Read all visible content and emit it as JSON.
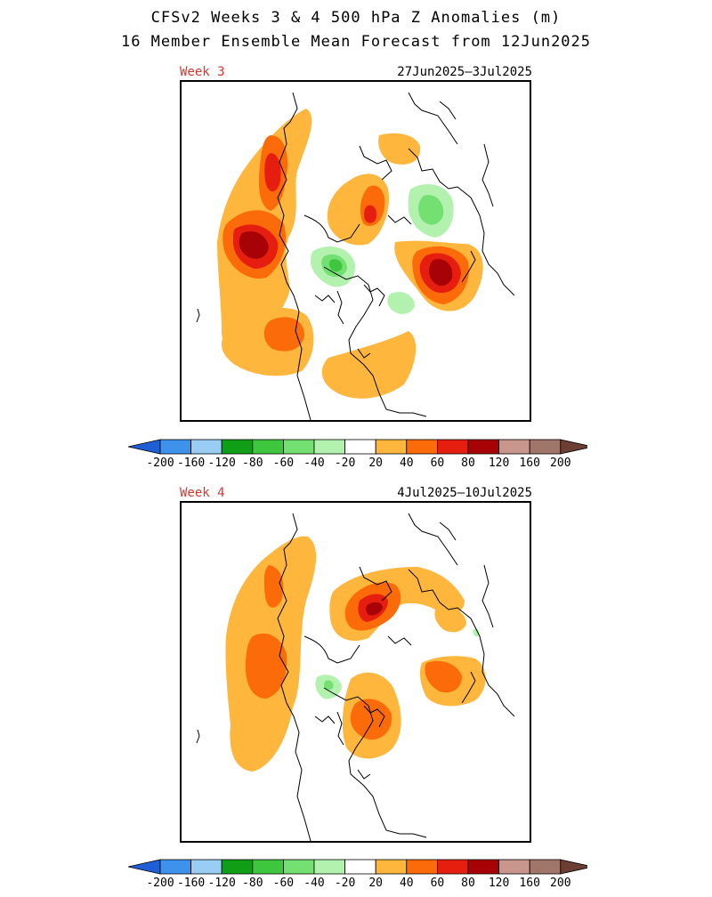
{
  "title_line1": "CFSv2 Weeks 3 & 4 500 hPa Z Anomalies (m)",
  "title_line2": "16 Member Ensemble Mean Forecast from 12Jun2025",
  "panels": [
    {
      "week_label": "Week 3",
      "date_range": "27Jun2025–3Jul2025"
    },
    {
      "week_label": "Week 4",
      "date_range": "4Jul2025–10Jul2025"
    }
  ],
  "colorbar": {
    "levels": [
      "-200",
      "-160",
      "-120",
      "-80",
      "-60",
      "-40",
      "-20",
      "20",
      "40",
      "60",
      "80",
      "120",
      "160",
      "200"
    ],
    "colors": [
      "#1f5fd6",
      "#3e92ec",
      "#99cdf4",
      "#119e17",
      "#3ec73e",
      "#73e071",
      "#b3f2ae",
      "#ffffff",
      "#feb63d",
      "#fc6b09",
      "#e51e10",
      "#a70306",
      "#c8968c",
      "#a1766a",
      "#6d3f34"
    ]
  }
}
